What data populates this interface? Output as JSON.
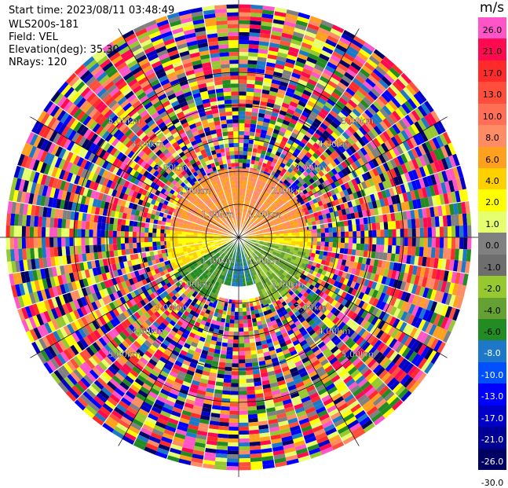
{
  "header": {
    "start_time": "Start time: 2023/08/11 03:48:49",
    "site": "WLS200s-181",
    "field": "Field: VEL",
    "elevation": "Elevation(deg): 35.30",
    "nrays": "NRays: 120"
  },
  "colorbar": {
    "unit": "m/s",
    "ticks": [
      "26.0",
      "21.0",
      "17.0",
      "13.0",
      "10.0",
      "8.0",
      "6.0",
      "4.0",
      "2.0",
      "1.0",
      "0.0",
      "-1.0",
      "-2.0",
      "-4.0",
      "-6.0",
      "-8.0",
      "-10.0",
      "-13.0",
      "-17.0",
      "-21.0",
      "-26.0",
      "-30.0"
    ],
    "colors": [
      "#ff55c8",
      "#ff0a50",
      "#ff2a2a",
      "#ff4f3c",
      "#ff6e55",
      "#ff8c64",
      "#ffa01e",
      "#ffd000",
      "#ffff00",
      "#e6ff6e",
      "#808080",
      "#6e6e6e",
      "#96c830",
      "#64a032",
      "#228b22",
      "#1e78c8",
      "#0050ff",
      "#0000ff",
      "#0000c8",
      "#000096",
      "#000064"
    ]
  },
  "chart_data": {
    "type": "ppi",
    "field": "VEL",
    "units": "m/s",
    "elevation_deg": 35.3,
    "n_rays": 120,
    "range_rings_km": [
      1.0,
      2.0,
      3.0,
      4.0,
      5.0
    ],
    "range_ring_labels": [
      "1.00km",
      "2.00km",
      "3.00km",
      "4.00km",
      "5.00km"
    ],
    "max_range_km": 7.0,
    "sectors": [
      {
        "azimuth_deg": [
          275,
          85
        ],
        "range_km": [
          0,
          2.0
        ],
        "value_ms": 6.0,
        "description_value": "orange"
      },
      {
        "azimuth_deg": [
          240,
          275
        ],
        "range_km": [
          0,
          2.2
        ],
        "value_ms": 2.0
      },
      {
        "azimuth_deg": [
          85,
          100
        ],
        "range_km": [
          0,
          2.2
        ],
        "value_ms": 2.0
      },
      {
        "azimuth_deg": [
          100,
          160
        ],
        "range_km": [
          0,
          2.2
        ],
        "value_ms": -4.0
      },
      {
        "azimuth_deg": [
          160,
          200
        ],
        "range_km": [
          0,
          1.4
        ],
        "value_ms": -8.0
      },
      {
        "azimuth_deg": [
          200,
          240
        ],
        "range_km": [
          0,
          2.0
        ],
        "value_ms": -6.0
      }
    ]
  }
}
